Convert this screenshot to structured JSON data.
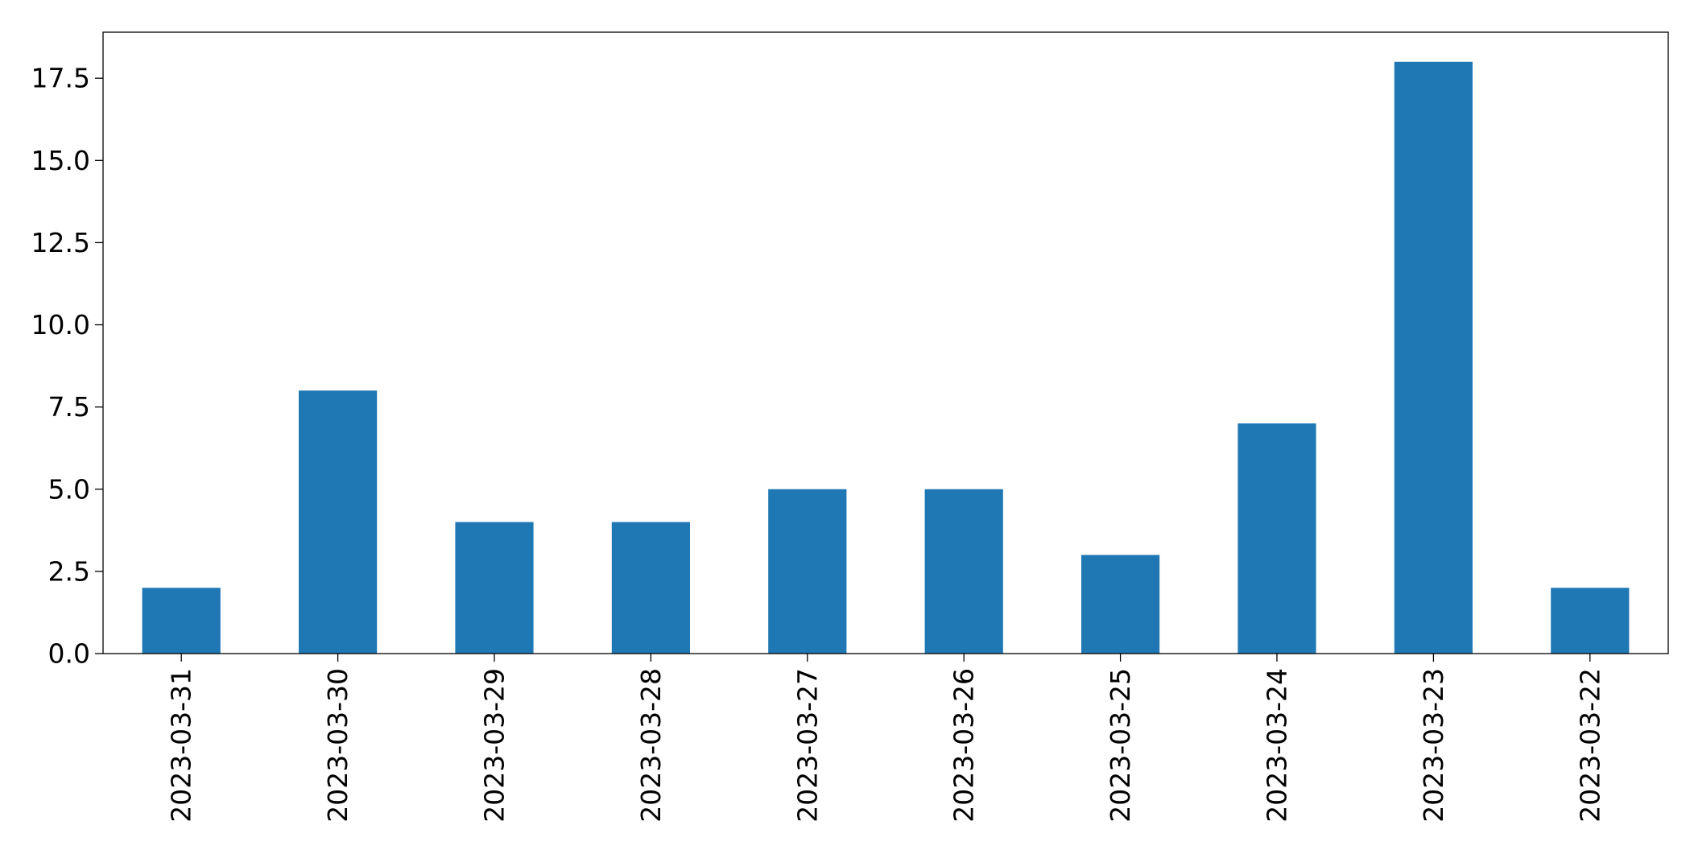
{
  "chart_data": {
    "type": "bar",
    "title": "",
    "xlabel": "",
    "ylabel": "",
    "categories": [
      "2023-03-31",
      "2023-03-30",
      "2023-03-29",
      "2023-03-28",
      "2023-03-27",
      "2023-03-26",
      "2023-03-25",
      "2023-03-24",
      "2023-03-23",
      "2023-03-22"
    ],
    "values": [
      2,
      8,
      4,
      4,
      5,
      5,
      3,
      7,
      18,
      2
    ],
    "ylim": [
      0,
      18.9
    ],
    "yticks": [
      "0.0",
      "2.5",
      "5.0",
      "7.5",
      "10.0",
      "12.5",
      "15.0",
      "17.5"
    ],
    "bar_color": "#1f77b4",
    "grid": false,
    "legend": "none"
  }
}
